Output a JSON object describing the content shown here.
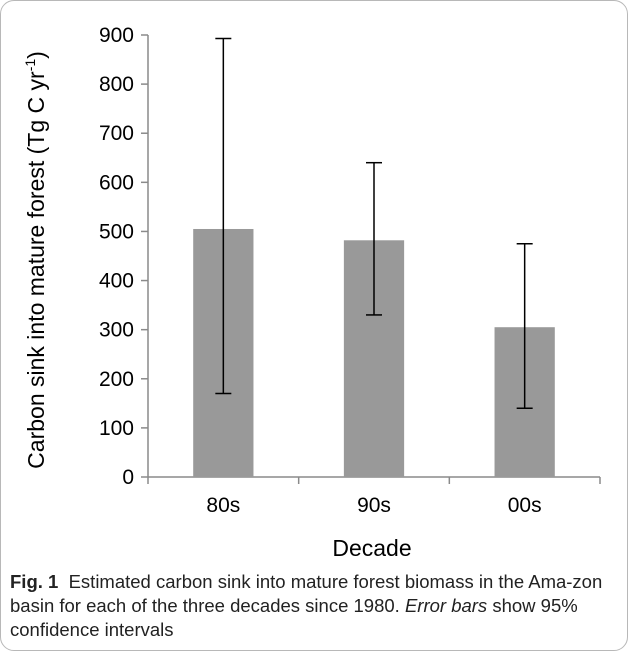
{
  "chart_data": {
    "type": "bar",
    "categories": [
      "80s",
      "90s",
      "00s"
    ],
    "values": [
      505,
      482,
      305
    ],
    "error_low": [
      170,
      330,
      140
    ],
    "error_high": [
      893,
      640,
      475
    ],
    "ylim": [
      0,
      900
    ],
    "yticks": [
      0,
      100,
      200,
      300,
      400,
      500,
      600,
      700,
      800,
      900
    ],
    "xlabel": "Decade",
    "ylabel_main": "Carbon sink into mature forest (Tg C yr",
    "ylabel_sup": "-1",
    "ylabel_close": ")",
    "bar_color": "#999999",
    "grid": false,
    "legend": "none"
  },
  "caption": {
    "label": "Fig. 1",
    "text_1": "Estimated carbon sink into mature forest biomass in the Ama-zon basin for each of the three decades since 1980.",
    "text_italic": "Error bars",
    "text_2": "show 95% confidence intervals"
  }
}
